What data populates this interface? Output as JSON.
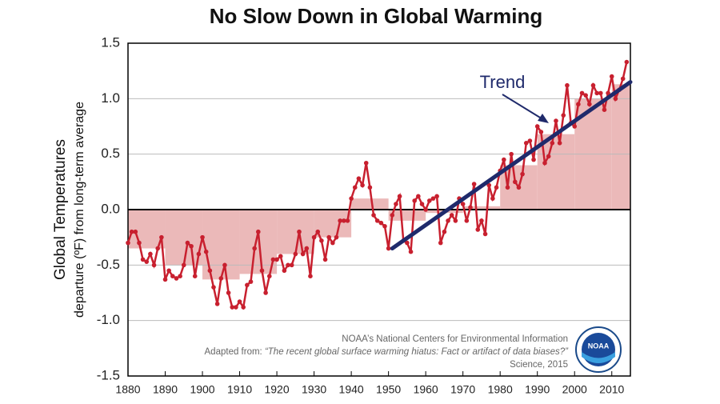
{
  "chart_data": {
    "type": "line",
    "title": "No Slow Down in Global Warming",
    "y_label": [
      "Global Temperatures",
      "departure (ºF) from long-term average"
    ],
    "xlim": [
      1880,
      2015
    ],
    "ylim": [
      -1.5,
      1.5
    ],
    "xticks": [
      1880,
      1890,
      1900,
      1910,
      1920,
      1930,
      1940,
      1950,
      1960,
      1970,
      1980,
      1990,
      2000,
      2010
    ],
    "yticks": [
      -1.5,
      {
        "value": -1,
        "label": "-1.0"
      },
      -0.5,
      {
        "value": 0,
        "label": "0.0"
      },
      0.5,
      {
        "value": 1,
        "label": "1.0"
      },
      1.5
    ],
    "grid": true,
    "x": [
      1880,
      1881,
      1882,
      1883,
      1884,
      1885,
      1886,
      1887,
      1888,
      1889,
      1890,
      1891,
      1892,
      1893,
      1894,
      1895,
      1896,
      1897,
      1898,
      1899,
      1900,
      1901,
      1902,
      1903,
      1904,
      1905,
      1906,
      1907,
      1908,
      1909,
      1910,
      1911,
      1912,
      1913,
      1914,
      1915,
      1916,
      1917,
      1918,
      1919,
      1920,
      1921,
      1922,
      1923,
      1924,
      1925,
      1926,
      1927,
      1928,
      1929,
      1930,
      1931,
      1932,
      1933,
      1934,
      1935,
      1936,
      1937,
      1938,
      1939,
      1940,
      1941,
      1942,
      1943,
      1944,
      1945,
      1946,
      1947,
      1948,
      1949,
      1950,
      1951,
      1952,
      1953,
      1954,
      1955,
      1956,
      1957,
      1958,
      1959,
      1960,
      1961,
      1962,
      1963,
      1964,
      1965,
      1966,
      1967,
      1968,
      1969,
      1970,
      1971,
      1972,
      1973,
      1974,
      1975,
      1976,
      1977,
      1978,
      1979,
      1980,
      1981,
      1982,
      1983,
      1984,
      1985,
      1986,
      1987,
      1988,
      1989,
      1990,
      1991,
      1992,
      1993,
      1994,
      1995,
      1996,
      1997,
      1998,
      1999,
      2000,
      2001,
      2002,
      2003,
      2004,
      2005,
      2006,
      2007,
      2008,
      2009,
      2010,
      2011,
      2012,
      2013,
      2014
    ],
    "series": [
      {
        "color": "#c8202f",
        "values": [
          -0.3,
          -0.2,
          -0.2,
          -0.3,
          -0.45,
          -0.47,
          -0.4,
          -0.5,
          -0.35,
          -0.25,
          -0.63,
          -0.55,
          -0.6,
          -0.62,
          -0.6,
          -0.5,
          -0.3,
          -0.33,
          -0.6,
          -0.4,
          -0.25,
          -0.38,
          -0.55,
          -0.7,
          -0.85,
          -0.62,
          -0.5,
          -0.75,
          -0.88,
          -0.88,
          -0.83,
          -0.88,
          -0.68,
          -0.65,
          -0.35,
          -0.2,
          -0.55,
          -0.75,
          -0.6,
          -0.45,
          -0.45,
          -0.42,
          -0.55,
          -0.5,
          -0.5,
          -0.4,
          -0.2,
          -0.4,
          -0.35,
          -0.6,
          -0.25,
          -0.2,
          -0.28,
          -0.45,
          -0.25,
          -0.3,
          -0.25,
          -0.1,
          -0.1,
          -0.1,
          0.1,
          0.2,
          0.28,
          0.22,
          0.42,
          0.2,
          -0.05,
          -0.1,
          -0.12,
          -0.15,
          -0.35,
          -0.05,
          0.05,
          0.12,
          -0.28,
          -0.3,
          -0.38,
          0.08,
          0.12,
          0.05,
          0.0,
          0.08,
          0.1,
          0.12,
          -0.3,
          -0.2,
          -0.1,
          -0.05,
          -0.1,
          0.1,
          0.05,
          -0.1,
          0.02,
          0.23,
          -0.18,
          -0.1,
          -0.22,
          0.22,
          0.1,
          0.2,
          0.35,
          0.45,
          0.2,
          0.5,
          0.25,
          0.2,
          0.32,
          0.6,
          0.62,
          0.45,
          0.75,
          0.7,
          0.42,
          0.48,
          0.6,
          0.8,
          0.6,
          0.85,
          1.12,
          0.78,
          0.75,
          0.95,
          1.05,
          1.03,
          0.95,
          1.12,
          1.05,
          1.05,
          0.9,
          1.05,
          1.2,
          1.0,
          1.08,
          1.18,
          1.33
        ]
      }
    ],
    "decades": {
      "color": "#ebb9b9",
      "x": [
        1880,
        1890,
        1900,
        1910,
        1920,
        1930,
        1940,
        1950,
        1960,
        1970,
        1980,
        1990,
        2000,
        2010
      ],
      "values": [
        -0.35,
        -0.5,
        -0.63,
        -0.58,
        -0.4,
        -0.25,
        0.1,
        -0.1,
        -0.03,
        0.03,
        0.4,
        0.68,
        1.0,
        1.13
      ]
    },
    "trend": {
      "name": "Trend",
      "color": "#1f2a6b",
      "x": [
        1951,
        2015
      ],
      "values": [
        -0.35,
        1.15
      ]
    },
    "source": [
      "NOAA’s National Centers for Environmental Information",
      "Adapted from: ",
      "“The recent global surface warming hiatus: Fact or artifact of data biases?”",
      "Science, 2015"
    ],
    "logo_text": "NOAA"
  }
}
